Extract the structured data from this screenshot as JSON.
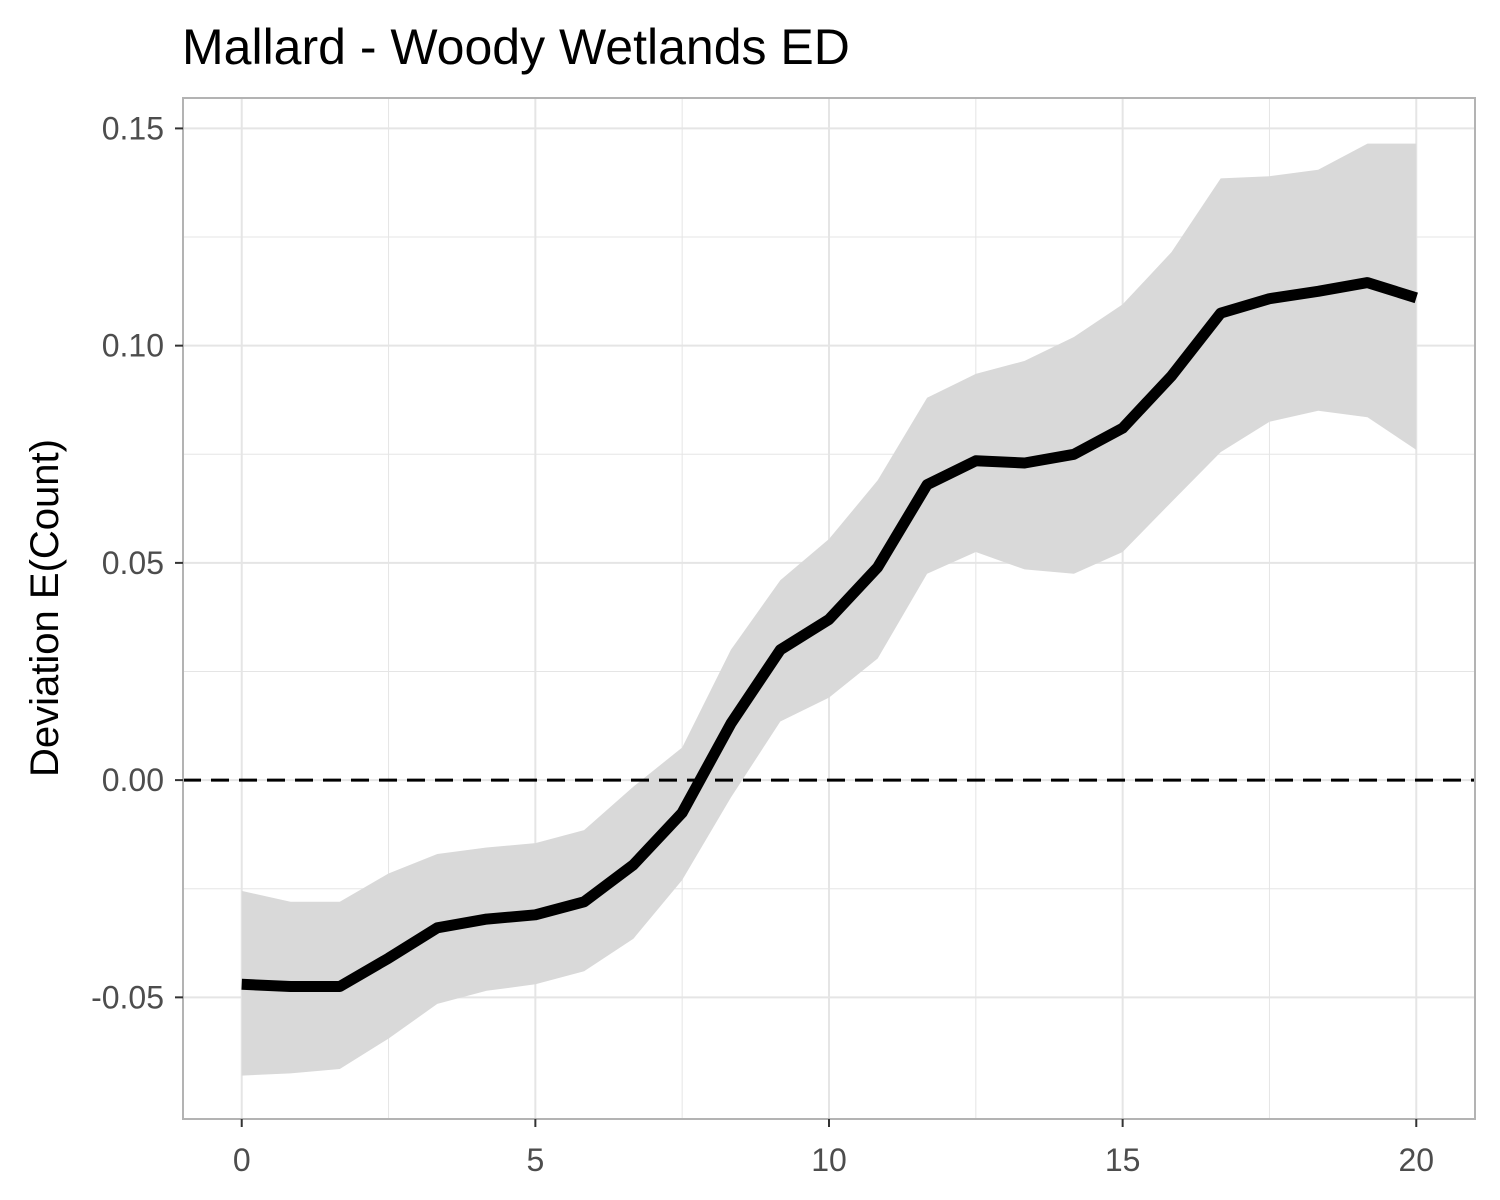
{
  "chart_data": {
    "type": "line",
    "title": "Mallard - Woody Wetlands ED",
    "xlabel": "",
    "ylabel": "Deviation E(Count)",
    "xlim": [
      -1,
      21
    ],
    "ylim": [
      -0.078,
      0.157
    ],
    "x_ticks": [
      0,
      5,
      10,
      15,
      20
    ],
    "x_tick_labels": [
      "0",
      "5",
      "10",
      "15",
      "20"
    ],
    "y_ticks": [
      -0.05,
      0.0,
      0.05,
      0.1,
      0.15
    ],
    "y_tick_labels": [
      "-0.05",
      "0.00",
      "0.05",
      "0.10",
      "0.15"
    ],
    "grid": true,
    "reference_line": {
      "y": 0,
      "style": "dashed",
      "color": "#000000"
    },
    "colors": {
      "line": "#000000",
      "ribbon": "#d9d9d9",
      "grid": "#e5e5e5",
      "panel_border": "#b3b3b3"
    },
    "series": [
      {
        "x": [
          0,
          0.83,
          1.67,
          2.5,
          3.33,
          4.17,
          5,
          5.83,
          6.67,
          7.5,
          8.33,
          9.17,
          10,
          10.83,
          11.67,
          12.5,
          13.33,
          14.17,
          15,
          15.83,
          16.67,
          17.5,
          18.33,
          19.17,
          20
        ],
        "y": [
          -0.047,
          -0.0475,
          -0.0475,
          -0.041,
          -0.034,
          -0.032,
          -0.031,
          -0.028,
          -0.0195,
          -0.0075,
          0.013,
          0.03,
          0.037,
          0.049,
          0.068,
          0.0735,
          0.073,
          0.075,
          0.081,
          0.093,
          0.1075,
          0.1108,
          0.1125,
          0.1145,
          0.111
        ],
        "lower": [
          -0.068,
          -0.0675,
          -0.0665,
          -0.0595,
          -0.0515,
          -0.0485,
          -0.047,
          -0.044,
          -0.0365,
          -0.023,
          -0.004,
          0.0135,
          0.019,
          0.028,
          0.0475,
          0.0525,
          0.0485,
          0.0475,
          0.0525,
          0.064,
          0.0755,
          0.0825,
          0.085,
          0.0835,
          0.076
        ],
        "upper": [
          -0.0255,
          -0.028,
          -0.028,
          -0.0215,
          -0.017,
          -0.0155,
          -0.0145,
          -0.0115,
          -0.0015,
          0.0075,
          0.03,
          0.046,
          0.0555,
          0.069,
          0.088,
          0.0935,
          0.0965,
          0.102,
          0.1095,
          0.1215,
          0.1385,
          0.139,
          0.1405,
          0.1465,
          0.1465
        ]
      }
    ]
  }
}
